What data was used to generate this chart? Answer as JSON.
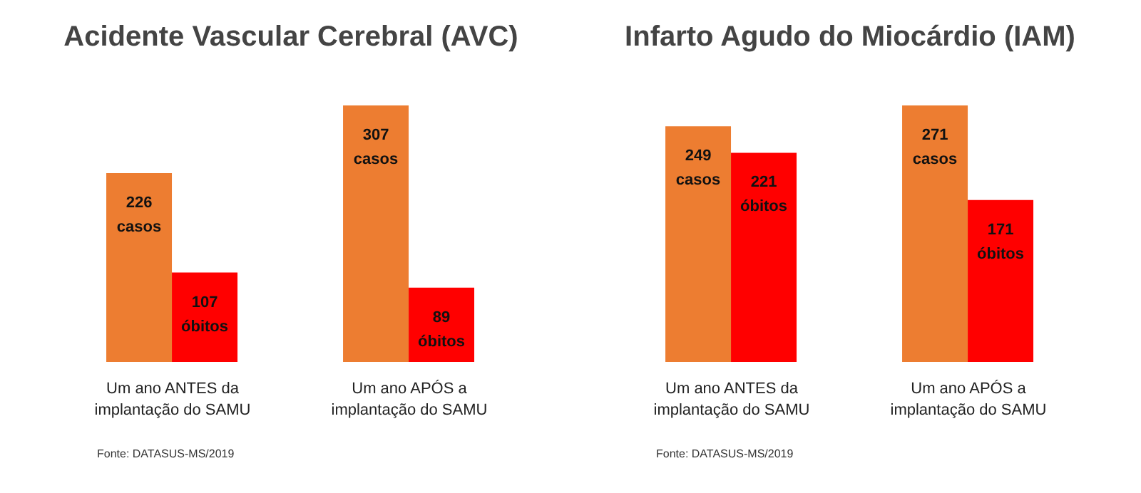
{
  "chart_data": [
    {
      "type": "bar",
      "title": "Acidente Vascular Cerebral (AVC)",
      "categories": [
        "Um ano ANTES da implantação do SAMU",
        "Um ano APÓS a implantação do SAMU"
      ],
      "series": [
        {
          "name": "casos",
          "color": "#ed7d31",
          "values": [
            226,
            307
          ]
        },
        {
          "name": "óbitos",
          "color": "#ff0000",
          "values": [
            107,
            89
          ]
        }
      ],
      "data_labels": true,
      "legend": false,
      "grid": false,
      "annotations": [
        "Fonte: DATASUS-MS/2019"
      ]
    },
    {
      "type": "bar",
      "title": "Infarto Agudo do Miocárdio (IAM)",
      "categories": [
        "Um ano ANTES da implantação do SAMU",
        "Um ano APÓS a implantação do SAMU"
      ],
      "series": [
        {
          "name": "casos",
          "color": "#ed7d31",
          "values": [
            249,
            271
          ]
        },
        {
          "name": "óbitos",
          "color": "#ff0000",
          "values": [
            221,
            171
          ]
        }
      ],
      "data_labels": true,
      "legend": false,
      "grid": false,
      "annotations": [
        "Fonte: DATASUS-MS/2019"
      ]
    }
  ]
}
